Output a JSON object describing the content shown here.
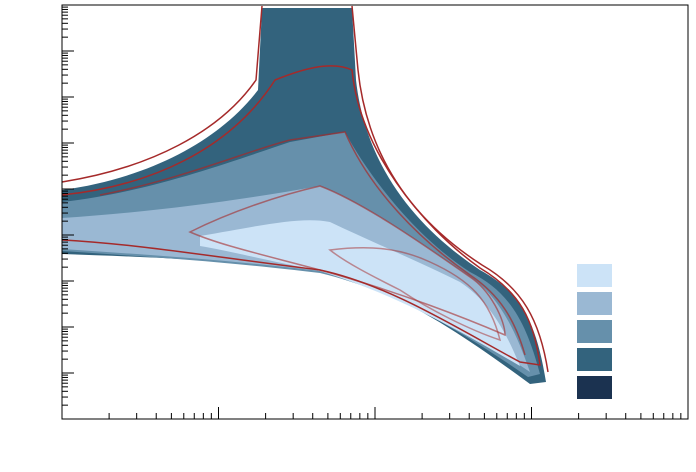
{
  "chart_data": {
    "type": "density",
    "xscale": "log",
    "yscale": "log",
    "xlim": [
      1,
      10000
    ],
    "xticks": [
      10,
      100,
      1000
    ],
    "ylim": [
      1,
      1000000000
    ],
    "yticks": [
      10,
      100,
      1000,
      10000,
      100000,
      1000000,
      10000000,
      100000000
    ],
    "levels": [
      {
        "color": "#cce3f7"
      },
      {
        "color": "#9ab8d3"
      },
      {
        "color": "#6690ab"
      },
      {
        "color": "#33637d"
      },
      {
        "color": "#1b3250"
      }
    ],
    "contour_color": "#a52a2a"
  }
}
